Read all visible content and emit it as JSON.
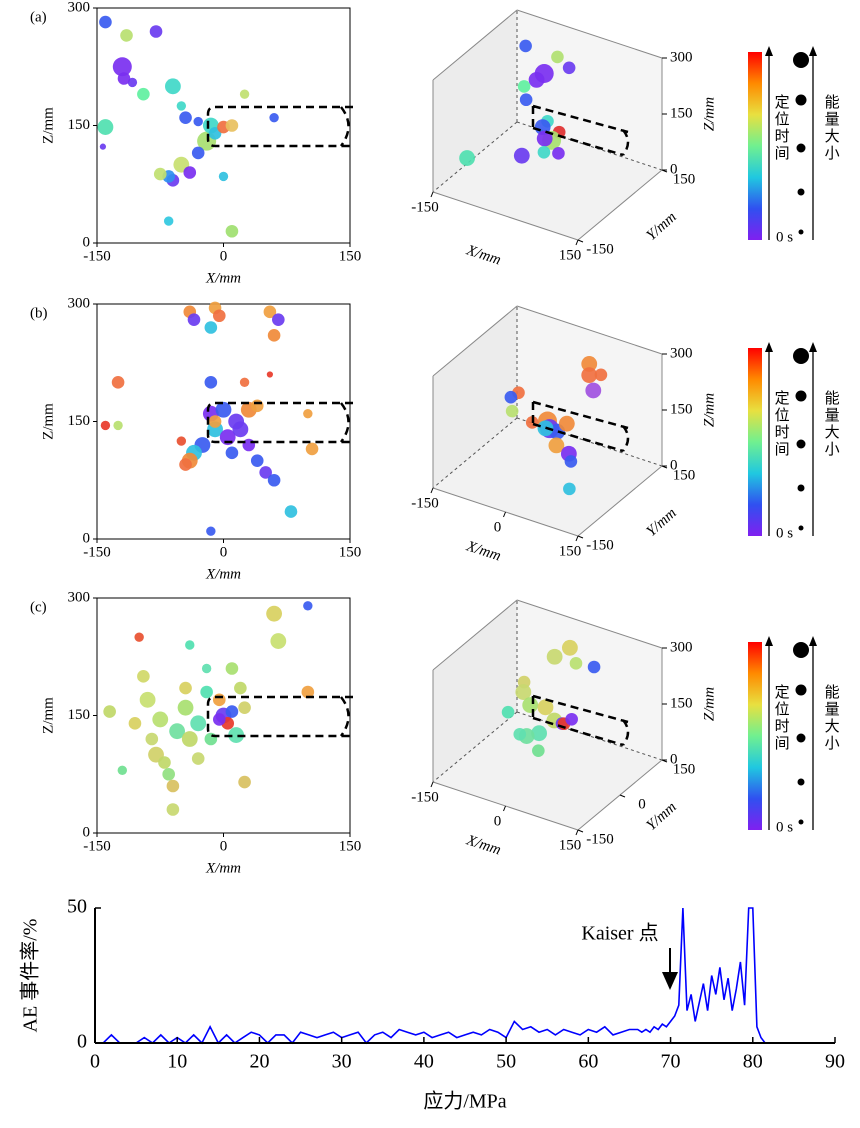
{
  "chart_data": [
    {
      "type": "scatter",
      "title": "(a)",
      "xlabel": "X/mm",
      "ylabel": "Z/mm",
      "xlim": [
        -150,
        150
      ],
      "ylim": [
        0,
        300
      ],
      "xticks": [
        -150,
        0,
        150
      ],
      "yticks": [
        0,
        150,
        300
      ],
      "x": [
        -140,
        -80,
        -115,
        -120,
        -108,
        -118,
        -95,
        -60,
        -140,
        -143,
        -45,
        -30,
        -50,
        -20,
        -15,
        -10,
        0,
        10,
        -30,
        -50,
        -40,
        -60,
        -65,
        -75,
        0,
        60,
        25,
        -65,
        10
      ],
      "values": [
        282,
        270,
        265,
        225,
        205,
        210,
        190,
        200,
        148,
        123,
        160,
        155,
        175,
        130,
        150,
        140,
        148,
        150,
        115,
        100,
        90,
        80,
        85,
        88,
        85,
        160,
        190,
        28,
        15
      ],
      "sizes": [
        3,
        3,
        3,
        5,
        2,
        3,
        3,
        4,
        4,
        1,
        3,
        2,
        2,
        5,
        4,
        3,
        3,
        3,
        3,
        4,
        3,
        3,
        3,
        3,
        2,
        2,
        2,
        2,
        3
      ],
      "colors": [
        "#3a5bf0",
        "#6a3cf0",
        "#b8e070",
        "#7a2ff0",
        "#6a3cf0",
        "#7a2ff0",
        "#5ff0a0",
        "#40d8c8",
        "#50e0b0",
        "#6a3cf0",
        "#3a5bf0",
        "#3a5bf0",
        "#40d8c8",
        "#a8e070",
        "#40d8c8",
        "#30c0e0",
        "#f07040",
        "#e8c060",
        "#3a5bf0",
        "#c8e070",
        "#7a2ff0",
        "#6a3cf0",
        "#3090f0",
        "#c0e070",
        "#30c0e0",
        "#3a5bf0",
        "#c0e070",
        "#30c8e0",
        "#a0e070"
      ]
    },
    {
      "type": "scatter3d",
      "xlabel": "X/mm",
      "ylabel": "Y/mm",
      "zlabel": "Z/mm",
      "xlim": [
        -150,
        150
      ],
      "ylim": [
        -150,
        150
      ],
      "zlim": [
        0,
        300
      ],
      "xticks": [
        -150,
        150
      ],
      "yticks": [
        -150,
        150
      ],
      "zticks": [
        0,
        150,
        300
      ],
      "x": [
        -80,
        -20,
        10,
        -30,
        -40,
        -60,
        -50,
        0,
        30,
        20,
        -10,
        40,
        -30,
        -120,
        0,
        10
      ],
      "y": [
        60,
        70,
        60,
        40,
        30,
        20,
        10,
        0,
        -10,
        -20,
        0,
        -30,
        -40,
        -80,
        -10,
        -30
      ],
      "z": [
        290,
        280,
        270,
        250,
        235,
        215,
        190,
        160,
        150,
        130,
        140,
        110,
        80,
        60,
        120,
        100
      ],
      "sizes": [
        3,
        3,
        3,
        5,
        4,
        3,
        3,
        3,
        3,
        5,
        4,
        3,
        4,
        4,
        4,
        3
      ],
      "colors": [
        "#3a5bf0",
        "#b0e070",
        "#6a3cf0",
        "#7a2ff0",
        "#7a2ff0",
        "#5ff0a0",
        "#3a5bf0",
        "#40d8c8",
        "#e03030",
        "#a8e070",
        "#3a5bf0",
        "#7a2ff0",
        "#6a3cf0",
        "#50e0b0",
        "#7a2ff0",
        "#40d8c8"
      ],
      "legend": {
        "time_label": "定位时间",
        "time_start": "0 s",
        "energy_label": "能量大小",
        "colors": [
          "#ff0000",
          "#ff8a00",
          "#e8e040",
          "#70f090",
          "#20c8e0",
          "#3050f0",
          "#8020f0"
        ]
      }
    },
    {
      "type": "scatter",
      "title": "(b)",
      "xlabel": "X/mm",
      "ylabel": "Z/mm",
      "xlim": [
        -150,
        150
      ],
      "ylim": [
        0,
        300
      ],
      "xticks": [
        -150,
        0,
        150
      ],
      "yticks": [
        0,
        150,
        300
      ],
      "x": [
        -40,
        -10,
        -5,
        -35,
        -15,
        55,
        65,
        60,
        -125,
        -15,
        25,
        55,
        -140,
        -125,
        -50,
        100,
        105,
        -15,
        0,
        15,
        30,
        40,
        -10,
        5,
        20,
        -25,
        -35,
        -40,
        -45,
        30,
        40,
        50,
        60,
        80,
        -15,
        -10,
        10
      ],
      "values": [
        290,
        295,
        285,
        280,
        270,
        290,
        280,
        260,
        200,
        200,
        200,
        210,
        145,
        145,
        125,
        160,
        115,
        160,
        165,
        150,
        165,
        170,
        140,
        130,
        140,
        120,
        110,
        100,
        95,
        120,
        100,
        85,
        75,
        35,
        10,
        150,
        110
      ],
      "sizes": [
        3,
        3,
        3,
        3,
        3,
        3,
        3,
        3,
        3,
        3,
        2,
        1,
        2,
        2,
        2,
        2,
        3,
        4,
        4,
        4,
        4,
        3,
        4,
        4,
        4,
        4,
        4,
        4,
        3,
        3,
        3,
        3,
        3,
        3,
        2,
        3,
        3
      ],
      "colors": [
        "#f08a3a",
        "#f0a040",
        "#f07040",
        "#6a3cf0",
        "#30c0e0",
        "#f0a040",
        "#6a3cf0",
        "#f08a3a",
        "#f07040",
        "#3a5bf0",
        "#f07040",
        "#e83a2a",
        "#e83a2a",
        "#b8e070",
        "#e85030",
        "#f0a040",
        "#f0a040",
        "#7a2ff0",
        "#3a5bf0",
        "#6a3cf0",
        "#f08a3a",
        "#f0a040",
        "#30c0e0",
        "#7a2ff0",
        "#6a3cf0",
        "#3a5bf0",
        "#30c0e0",
        "#f08a3a",
        "#f07040",
        "#7a2ff0",
        "#3a5bf0",
        "#6a3cf0",
        "#3a5bf0",
        "#30c0e0",
        "#3a5bf0",
        "#f0a040",
        "#3a5bf0"
      ]
    },
    {
      "type": "scatter3d",
      "xlabel": "X/mm",
      "ylabel": "Y/mm",
      "zlabel": "Z/mm",
      "xlim": [
        -150,
        150
      ],
      "ylim": [
        -150,
        150
      ],
      "zlim": [
        0,
        300
      ],
      "xticks": [
        -150,
        0,
        150
      ],
      "yticks": [
        -150,
        150
      ],
      "zticks": [
        0,
        150,
        300
      ],
      "x": [
        40,
        40,
        60,
        70,
        -60,
        -70,
        -50,
        0,
        10,
        20,
        -10,
        30,
        50,
        60,
        80,
        -20,
        40
      ],
      "y": [
        80,
        80,
        60,
        70,
        0,
        -10,
        -40,
        0,
        -10,
        0,
        10,
        -20,
        -10,
        -20,
        -60,
        -20,
        0
      ],
      "z": [
        270,
        240,
        220,
        260,
        200,
        190,
        180,
        150,
        140,
        130,
        120,
        110,
        90,
        80,
        40,
        150,
        160
      ],
      "sizes": [
        4,
        4,
        4,
        3,
        3,
        3,
        3,
        5,
        5,
        4,
        4,
        4,
        4,
        3,
        3,
        3,
        4
      ],
      "colors": [
        "#f08a3a",
        "#f07040",
        "#a050e0",
        "#f07040",
        "#f07040",
        "#3a5bf0",
        "#b8e070",
        "#f08a3a",
        "#6a3cf0",
        "#3a5bf0",
        "#30c0e0",
        "#f0a040",
        "#7a2ff0",
        "#3a5bf0",
        "#30c0e0",
        "#f07040",
        "#f08a3a"
      ],
      "legend": {
        "time_label": "定位时间",
        "time_start": "0 s",
        "energy_label": "能量大小",
        "colors": [
          "#ff0000",
          "#ff8a00",
          "#e8e040",
          "#70f090",
          "#20c8e0",
          "#3050f0",
          "#8020f0"
        ]
      }
    },
    {
      "type": "scatter",
      "title": "(c)",
      "xlabel": "X/mm",
      "ylabel": "Z/mm",
      "xlim": [
        -150,
        150
      ],
      "ylim": [
        0,
        300
      ],
      "xticks": [
        -150,
        0,
        150
      ],
      "yticks": [
        0,
        150,
        300
      ],
      "x": [
        -135,
        -120,
        -100,
        -95,
        -90,
        -105,
        -85,
        -80,
        -70,
        -65,
        -60,
        -60,
        -75,
        -55,
        -40,
        -45,
        -30,
        -20,
        -15,
        -30,
        -20,
        -40,
        -45,
        10,
        20,
        25,
        15,
        25,
        0,
        10,
        5,
        -5,
        60,
        65,
        100,
        100,
        -5
      ],
      "values": [
        155,
        80,
        250,
        200,
        170,
        140,
        120,
        100,
        90,
        75,
        60,
        30,
        145,
        130,
        120,
        160,
        140,
        180,
        120,
        95,
        210,
        240,
        185,
        210,
        185,
        160,
        125,
        65,
        150,
        155,
        140,
        145,
        280,
        245,
        180,
        290,
        170
      ],
      "sizes": [
        3,
        2,
        2,
        3,
        4,
        3,
        3,
        4,
        3,
        3,
        3,
        3,
        4,
        4,
        4,
        4,
        4,
        3,
        3,
        3,
        2,
        2,
        3,
        3,
        3,
        3,
        4,
        3,
        4,
        3,
        3,
        3,
        4,
        4,
        3,
        2,
        3
      ],
      "colors": [
        "#c0d868",
        "#70e090",
        "#e85030",
        "#d0d868",
        "#c8e070",
        "#d8d060",
        "#c8d870",
        "#d0d068",
        "#c0d868",
        "#90e080",
        "#d8c060",
        "#c8d870",
        "#b8e070",
        "#70e0a0",
        "#c0d868",
        "#a8e070",
        "#60e0b0",
        "#50e0b0",
        "#70e090",
        "#c8d870",
        "#60e0b0",
        "#50e0b0",
        "#d8d060",
        "#a8e070",
        "#c0d868",
        "#d0d068",
        "#60e0b0",
        "#d8c060",
        "#6a3cf0",
        "#3a5bf0",
        "#e83a2a",
        "#7a2ff0",
        "#d8d060",
        "#c8e070",
        "#f0a040",
        "#3a5bf0",
        "#f0a040"
      ]
    },
    {
      "type": "scatter3d",
      "xlabel": "X/mm",
      "ylabel": "Y/mm",
      "zlabel": "Z/mm",
      "xlim": [
        -150,
        150
      ],
      "ylim": [
        -150,
        150
      ],
      "zlim": [
        0,
        300
      ],
      "xticks": [
        -150,
        0,
        150
      ],
      "yticks": [
        -150,
        0,
        150
      ],
      "zticks": [
        0,
        150,
        300
      ],
      "x": [
        0,
        -20,
        30,
        50,
        -60,
        -50,
        -30,
        -10,
        20,
        0,
        -20,
        -40,
        30,
        40,
        50,
        -70,
        10
      ],
      "y": [
        80,
        60,
        50,
        80,
        20,
        0,
        -10,
        10,
        -10,
        -30,
        -40,
        -30,
        0,
        -10,
        0,
        -20,
        -50
      ],
      "z": [
        280,
        260,
        270,
        250,
        200,
        190,
        170,
        160,
        150,
        120,
        110,
        100,
        140,
        150,
        160,
        140,
        90
      ],
      "sizes": [
        4,
        4,
        3,
        3,
        3,
        4,
        4,
        4,
        4,
        4,
        4,
        3,
        3,
        3,
        3,
        3,
        3
      ],
      "colors": [
        "#d8d060",
        "#c8d870",
        "#b8e070",
        "#3a5bf0",
        "#d0d068",
        "#c8d870",
        "#a8e070",
        "#d8d060",
        "#c0d868",
        "#60e0b0",
        "#70e0a0",
        "#60e0b0",
        "#6a3cf0",
        "#e83a2a",
        "#7a2ff0",
        "#50e0b0",
        "#70e090"
      ],
      "legend": {
        "time_label": "定位时间",
        "time_start": "0 s",
        "energy_label": "能量大小",
        "colors": [
          "#ff0000",
          "#ff8a00",
          "#e8e040",
          "#70f090",
          "#20c8e0",
          "#3050f0",
          "#8020f0"
        ]
      }
    },
    {
      "type": "line",
      "xlabel": "应力/MPa",
      "ylabel": "AE 事件率/%",
      "annotation": "Kaiser 点",
      "color": "#0000ff",
      "xlim": [
        0,
        90
      ],
      "ylim": [
        0,
        50
      ],
      "xticks": [
        0,
        10,
        20,
        30,
        40,
        50,
        60,
        70,
        80,
        90
      ],
      "yticks": [
        0,
        50
      ],
      "x": [
        0,
        1,
        2,
        3,
        4,
        5,
        6,
        7,
        8,
        9,
        10,
        11,
        12,
        13,
        14,
        15,
        16,
        17,
        18,
        19,
        20,
        21,
        22,
        23,
        24,
        25,
        26,
        27,
        28,
        29,
        30,
        31,
        32,
        33,
        34,
        35,
        36,
        37,
        38,
        39,
        40,
        41,
        42,
        43,
        44,
        45,
        46,
        47,
        48,
        49,
        50,
        51,
        52,
        53,
        54,
        55,
        56,
        57,
        58,
        59,
        60,
        61,
        62,
        63,
        64,
        65,
        66,
        66.5,
        67,
        67.5,
        68,
        68.5,
        69,
        69.5,
        70,
        70.5,
        71,
        71.5,
        72,
        72.5,
        73,
        73.5,
        74,
        74.5,
        75,
        75.5,
        76,
        76.5,
        77,
        77.5,
        78,
        78.5,
        79,
        79.5,
        80,
        80.5,
        81,
        81.5,
        82,
        90
      ],
      "values": [
        0,
        0,
        3,
        0,
        0,
        0,
        2,
        0,
        3,
        0,
        2,
        0,
        3,
        0,
        6,
        0,
        3,
        0,
        2,
        4,
        3,
        0,
        3,
        3,
        0,
        4,
        3,
        2,
        3,
        4,
        2,
        3,
        4,
        0,
        3,
        4,
        2,
        5,
        4,
        3,
        4,
        2,
        3,
        4,
        2,
        3,
        4,
        3,
        5,
        4,
        2,
        8,
        5,
        6,
        4,
        5,
        3,
        5,
        4,
        3,
        5,
        4,
        6,
        3,
        4,
        5,
        5,
        4,
        5,
        4,
        6,
        5,
        7,
        6,
        8,
        10,
        14,
        50,
        12,
        18,
        8,
        15,
        22,
        12,
        25,
        18,
        28,
        16,
        24,
        12,
        20,
        30,
        14,
        50,
        50,
        6,
        2,
        0,
        0,
        0
      ]
    }
  ]
}
